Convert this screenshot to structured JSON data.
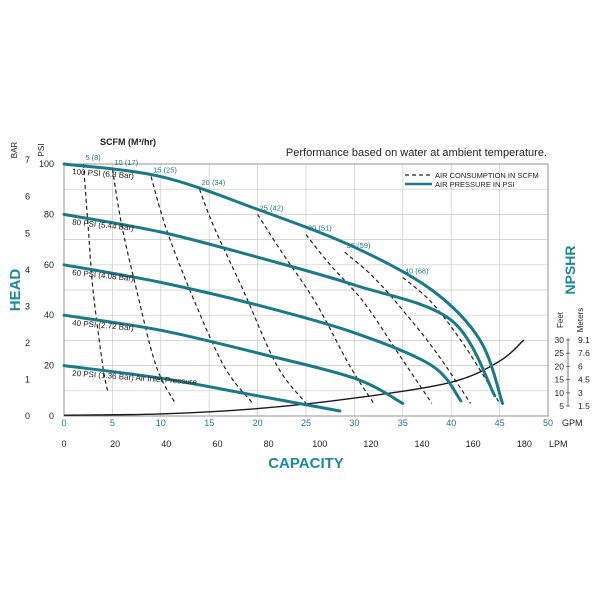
{
  "chart_data": {
    "type": "line",
    "subtitle": "Performance based on water at ambient temperature.",
    "xlabel": "CAPACITY",
    "ylabel": "HEAD",
    "y2label": "NPSHR",
    "scfm_header": "SCFM (M³/hr)",
    "psi_unit": "PSI",
    "bar_unit": "BAR",
    "gpm_unit": "GPM",
    "lpm_unit": "LPM",
    "feet_unit": "Feet",
    "meters_unit": "Meters",
    "xlim_gpm": [
      0,
      50
    ],
    "ylim_psi": [
      0,
      100
    ],
    "gpm_ticks": [
      "0",
      "5",
      "10",
      "15",
      "20",
      "25",
      "30",
      "35",
      "40",
      "45",
      "50"
    ],
    "lpm_ticks": [
      "0",
      "20",
      "40",
      "60",
      "80",
      "100",
      "120",
      "140",
      "160",
      "180"
    ],
    "psi_ticks": [
      "0",
      "20",
      "40",
      "60",
      "80",
      "100"
    ],
    "bar_ticks": [
      "0",
      "1",
      "2",
      "3",
      "4",
      "5",
      "6",
      "7"
    ],
    "npshr_feet_ticks": [
      "5",
      "10",
      "15",
      "20",
      "25",
      "30"
    ],
    "npshr_meter_ticks": [
      "1.5",
      "3",
      "4.5",
      "6",
      "7.6",
      "9.1"
    ],
    "legend": {
      "placement": "top-right",
      "air_consumption": "AIR CONSUMPTION IN SCFM",
      "air_pressure": "AIR PRESSURE IN PSI"
    },
    "pressure_series": [
      {
        "name": "100 PSI (6.8 Bar)",
        "x": [
          0,
          10,
          20,
          30,
          38,
          43,
          45.3
        ],
        "y": [
          100,
          95,
          82,
          67,
          50,
          30,
          5
        ]
      },
      {
        "name": "80 PSI (5.44 Bar)",
        "x": [
          0,
          10,
          20,
          30,
          40,
          44.5
        ],
        "y": [
          80,
          73,
          63,
          52,
          38,
          8
        ]
      },
      {
        "name": "60 PSI (4.08 Bar)",
        "x": [
          0,
          10,
          20,
          30,
          38,
          41
        ],
        "y": [
          60,
          53,
          44,
          33,
          20,
          6
        ]
      },
      {
        "name": "40 PSI (2.72 Bar)",
        "x": [
          0,
          10,
          20,
          30,
          35
        ],
        "y": [
          40,
          34,
          25,
          15,
          5
        ]
      },
      {
        "name": "20 PSI (1.36 Bar) Air Inlet Pressure",
        "x": [
          0,
          10,
          20,
          28.5
        ],
        "y": [
          20,
          15,
          8,
          2
        ]
      }
    ],
    "air_consumption_series": [
      {
        "name": "5 (8)",
        "x": [
          2,
          2.5,
          3,
          4,
          4.5
        ],
        "y": [
          100,
          75,
          50,
          20,
          10
        ]
      },
      {
        "name": "10 (17)",
        "x": [
          5,
          6,
          7.5,
          9.5,
          11.5
        ],
        "y": [
          98,
          75,
          50,
          20,
          5
        ]
      },
      {
        "name": "15 (25)",
        "x": [
          9,
          10.5,
          13,
          16.5,
          19.5
        ],
        "y": [
          95,
          75,
          50,
          20,
          5
        ]
      },
      {
        "name": "20 (34)",
        "x": [
          14,
          15.5,
          18.5,
          22,
          25
        ],
        "y": [
          90,
          75,
          50,
          20,
          5
        ]
      },
      {
        "name": "25 (42)",
        "x": [
          20,
          22.5,
          26,
          29.5,
          32
        ],
        "y": [
          80,
          65,
          45,
          20,
          5
        ]
      },
      {
        "name": "30 (51)",
        "x": [
          25,
          27.5,
          31,
          34.5,
          38
        ],
        "y": [
          72,
          60,
          45,
          25,
          5
        ]
      },
      {
        "name": "35 (59)",
        "x": [
          29,
          32,
          35,
          38.5,
          42
        ],
        "y": [
          65,
          55,
          42,
          25,
          5
        ]
      },
      {
        "name": "40 (68)",
        "x": [
          35,
          38,
          41,
          43.5,
          45
        ],
        "y": [
          55,
          45,
          30,
          15,
          5
        ]
      }
    ],
    "npshr_series": {
      "name": "NPSHR",
      "x": [
        0,
        10,
        20,
        30,
        40,
        45,
        47.5
      ],
      "feet": [
        1.5,
        2,
        4,
        8,
        14,
        22,
        30
      ]
    }
  }
}
